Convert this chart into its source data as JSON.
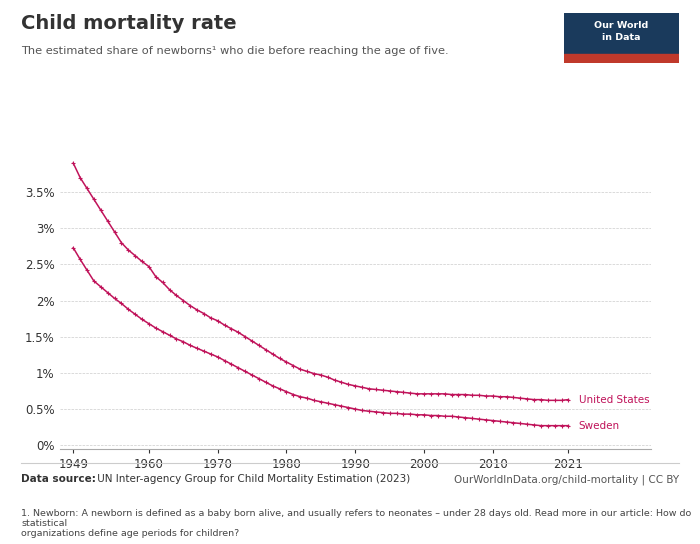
{
  "title": "Child mortality rate",
  "subtitle": "The estimated share of newborns¹ who die before reaching the age of five.",
  "datasource_bold": "Data source:",
  "datasource_normal": " UN Inter-agency Group for Child Mortality Estimation (2023)",
  "url_text": "OurWorldInData.org/child-mortality | CC BY",
  "footnote": "1. Newborn: A newborn is defined as a baby born alive, and usually refers to neonates – under 28 days old. Read more in our article: How do statistical\norganizations define age periods for children?",
  "line_color": "#C0135A",
  "background_color": "#ffffff",
  "us_data": {
    "years": [
      1949,
      1950,
      1951,
      1952,
      1953,
      1954,
      1955,
      1956,
      1957,
      1958,
      1959,
      1960,
      1961,
      1962,
      1963,
      1964,
      1965,
      1966,
      1967,
      1968,
      1969,
      1970,
      1971,
      1972,
      1973,
      1974,
      1975,
      1976,
      1977,
      1978,
      1979,
      1980,
      1981,
      1982,
      1983,
      1984,
      1985,
      1986,
      1987,
      1988,
      1989,
      1990,
      1991,
      1992,
      1993,
      1994,
      1995,
      1996,
      1997,
      1998,
      1999,
      2000,
      2001,
      2002,
      2003,
      2004,
      2005,
      2006,
      2007,
      2008,
      2009,
      2010,
      2011,
      2012,
      2013,
      2014,
      2015,
      2016,
      2017,
      2018,
      2019,
      2020,
      2021
    ],
    "values": [
      3.9,
      3.7,
      3.55,
      3.4,
      3.25,
      3.1,
      2.95,
      2.8,
      2.7,
      2.62,
      2.54,
      2.47,
      2.33,
      2.25,
      2.15,
      2.07,
      2.0,
      1.93,
      1.87,
      1.82,
      1.76,
      1.72,
      1.66,
      1.61,
      1.56,
      1.5,
      1.44,
      1.38,
      1.32,
      1.26,
      1.2,
      1.15,
      1.1,
      1.05,
      1.02,
      0.99,
      0.97,
      0.94,
      0.9,
      0.87,
      0.84,
      0.82,
      0.8,
      0.78,
      0.77,
      0.76,
      0.75,
      0.74,
      0.73,
      0.72,
      0.71,
      0.71,
      0.71,
      0.71,
      0.71,
      0.7,
      0.7,
      0.7,
      0.69,
      0.69,
      0.68,
      0.68,
      0.67,
      0.67,
      0.66,
      0.65,
      0.64,
      0.63,
      0.63,
      0.62,
      0.62,
      0.62,
      0.63
    ]
  },
  "sweden_data": {
    "years": [
      1949,
      1950,
      1951,
      1952,
      1953,
      1954,
      1955,
      1956,
      1957,
      1958,
      1959,
      1960,
      1961,
      1962,
      1963,
      1964,
      1965,
      1966,
      1967,
      1968,
      1969,
      1970,
      1971,
      1972,
      1973,
      1974,
      1975,
      1976,
      1977,
      1978,
      1979,
      1980,
      1981,
      1982,
      1983,
      1984,
      1985,
      1986,
      1987,
      1988,
      1989,
      1990,
      1991,
      1992,
      1993,
      1994,
      1995,
      1996,
      1997,
      1998,
      1999,
      2000,
      2001,
      2002,
      2003,
      2004,
      2005,
      2006,
      2007,
      2008,
      2009,
      2010,
      2011,
      2012,
      2013,
      2014,
      2015,
      2016,
      2017,
      2018,
      2019,
      2020,
      2021
    ],
    "values": [
      2.73,
      2.57,
      2.42,
      2.27,
      2.19,
      2.11,
      2.03,
      1.96,
      1.88,
      1.81,
      1.74,
      1.68,
      1.62,
      1.57,
      1.52,
      1.47,
      1.43,
      1.38,
      1.34,
      1.3,
      1.26,
      1.22,
      1.17,
      1.12,
      1.07,
      1.02,
      0.97,
      0.92,
      0.87,
      0.82,
      0.78,
      0.74,
      0.7,
      0.67,
      0.65,
      0.62,
      0.6,
      0.58,
      0.56,
      0.54,
      0.52,
      0.5,
      0.48,
      0.47,
      0.46,
      0.45,
      0.44,
      0.44,
      0.43,
      0.43,
      0.42,
      0.42,
      0.41,
      0.41,
      0.4,
      0.4,
      0.39,
      0.38,
      0.37,
      0.36,
      0.35,
      0.34,
      0.33,
      0.32,
      0.31,
      0.3,
      0.29,
      0.28,
      0.27,
      0.27,
      0.27,
      0.27,
      0.27
    ]
  },
  "yticks": [
    0,
    0.5,
    1.0,
    1.5,
    2.0,
    2.5,
    3.0,
    3.5
  ],
  "ylim": [
    -0.05,
    4.2
  ],
  "xticks": [
    1949,
    1960,
    1970,
    1980,
    1990,
    2000,
    2010,
    2021
  ],
  "logo_bg": "#1a3a5c",
  "logo_red": "#c0392b"
}
